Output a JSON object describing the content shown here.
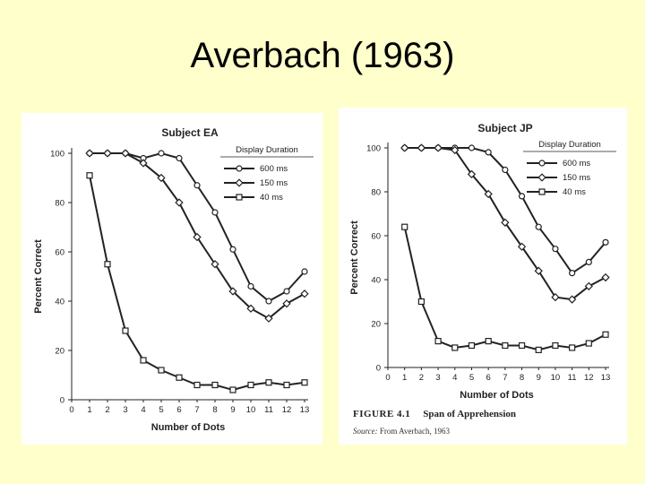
{
  "slide": {
    "title": "Averbach (1963)"
  },
  "figure": {
    "number": "FIGURE 4.1",
    "caption": "Span of Apprehension",
    "source_label": "Source:",
    "source_text": "From Averbach, 1963"
  },
  "chart_data": [
    {
      "type": "line",
      "title": "Subject EA",
      "xlabel": "Number of Dots",
      "ylabel": "Percent Correct",
      "legend_title": "Display Duration",
      "legend_position": "top-right",
      "x": [
        1,
        2,
        3,
        4,
        5,
        6,
        7,
        8,
        9,
        10,
        11,
        12,
        13
      ],
      "x_ticks": [
        0,
        1,
        2,
        3,
        4,
        5,
        6,
        7,
        8,
        9,
        10,
        11,
        12,
        13
      ],
      "y_ticks": [
        0,
        20,
        40,
        60,
        80,
        100
      ],
      "xlim": [
        0,
        13
      ],
      "ylim": [
        0,
        100
      ],
      "series": [
        {
          "name": "600 ms",
          "marker": "circle",
          "values": [
            100,
            100,
            100,
            98,
            100,
            98,
            87,
            76,
            61,
            46,
            40,
            44,
            52
          ]
        },
        {
          "name": "150 ms",
          "marker": "diamond",
          "values": [
            100,
            100,
            100,
            96,
            90,
            80,
            66,
            55,
            44,
            37,
            33,
            39,
            43
          ]
        },
        {
          "name": "40 ms",
          "marker": "square",
          "values": [
            91,
            55,
            28,
            16,
            12,
            9,
            6,
            6,
            4,
            6,
            7,
            6,
            7
          ]
        }
      ]
    },
    {
      "type": "line",
      "title": "Subject JP",
      "xlabel": "Number of Dots",
      "ylabel": "Percent Correct",
      "legend_title": "Display Duration",
      "legend_position": "top-right",
      "x": [
        1,
        2,
        3,
        4,
        5,
        6,
        7,
        8,
        9,
        10,
        11,
        12,
        13
      ],
      "x_ticks": [
        0,
        1,
        2,
        3,
        4,
        5,
        6,
        7,
        8,
        9,
        10,
        11,
        12,
        13
      ],
      "y_ticks": [
        0,
        20,
        40,
        60,
        80,
        100
      ],
      "xlim": [
        0,
        13
      ],
      "ylim": [
        0,
        100
      ],
      "series": [
        {
          "name": "600 ms",
          "marker": "circle",
          "values": [
            100,
            100,
            100,
            100,
            100,
            98,
            90,
            78,
            64,
            54,
            43,
            48,
            57
          ]
        },
        {
          "name": "150 ms",
          "marker": "diamond",
          "values": [
            100,
            100,
            100,
            99,
            88,
            79,
            66,
            55,
            44,
            32,
            31,
            37,
            41
          ]
        },
        {
          "name": "40 ms",
          "marker": "square",
          "values": [
            64,
            30,
            12,
            9,
            10,
            12,
            10,
            10,
            8,
            10,
            9,
            11,
            15
          ]
        }
      ]
    }
  ]
}
